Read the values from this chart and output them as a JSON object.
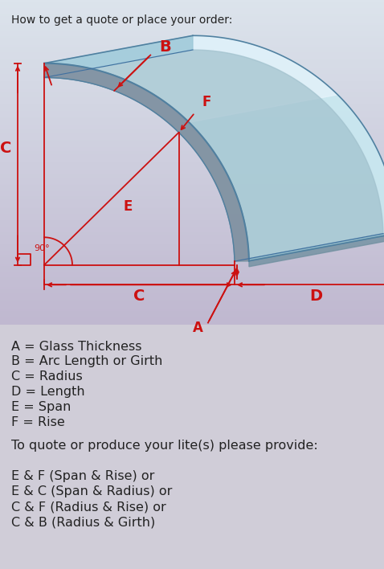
{
  "title": "How to get a quote or place your order:",
  "title_fontsize": 10,
  "bg_outer": "#d0cdd8",
  "bg_diagram_top": "#e8eef0",
  "bg_diagram_bottom": "#c8c0d8",
  "text_color_red": "#cc1111",
  "text_color_black": "#222222",
  "labels": {
    "A": "A = Glass Thickness",
    "B": "B = Arc Length or Girth",
    "C": "C = Radius",
    "D": "D = Length",
    "E": "E = Span",
    "F": "F = Rise"
  },
  "quote_text": "To quote or produce your lite(s) please provide:",
  "options": [
    "E & F (Span & Rise) or",
    "E & C (Span & Radius) or",
    "C & F (Radius & Rise) or",
    "C & B (Radius & Girth)"
  ]
}
